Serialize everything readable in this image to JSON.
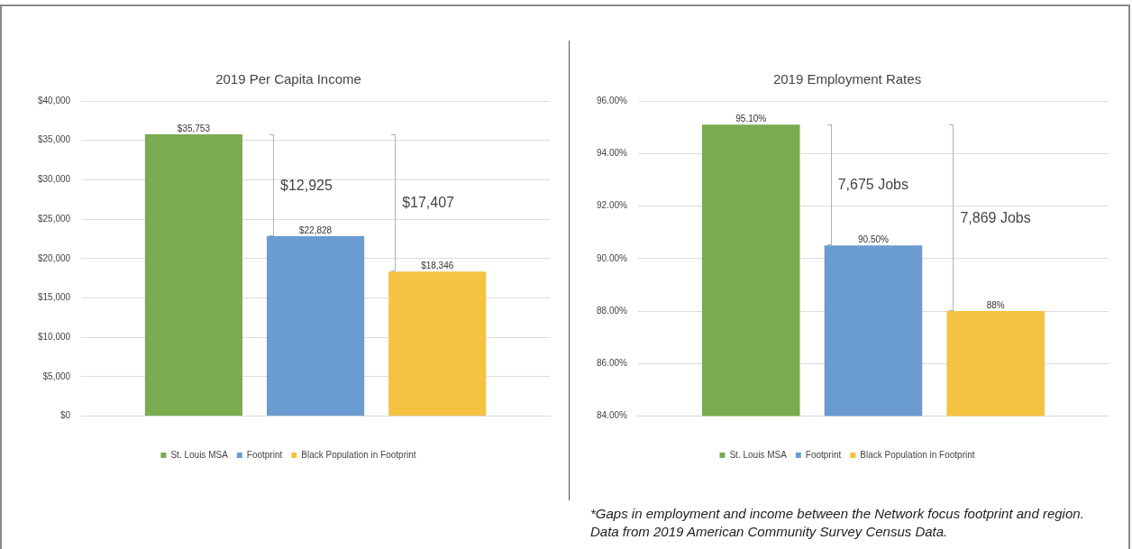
{
  "chart_data": [
    {
      "type": "bar",
      "title": "2019 Per Capita Income",
      "categories": [
        null
      ],
      "series": [
        {
          "name": "St. Louis MSA",
          "color": "#7aab4f",
          "values": [
            35753
          ],
          "value_labels": [
            "$35,753"
          ]
        },
        {
          "name": "Footprint",
          "color": "#6a9bd1",
          "values": [
            22828
          ],
          "value_labels": [
            "$22,828"
          ]
        },
        {
          "name": "Black Population in Footprint",
          "color": "#f5c242",
          "values": [
            18346
          ],
          "value_labels": [
            "$18,346"
          ]
        }
      ],
      "ylim": [
        0,
        40000
      ],
      "yticks": [
        {
          "value": 0,
          "label": "$0"
        },
        {
          "value": 5000,
          "label": "$5,000"
        },
        {
          "value": 10000,
          "label": "$10,000"
        },
        {
          "value": 15000,
          "label": "$15,000"
        },
        {
          "value": 20000,
          "label": "$20,000"
        },
        {
          "value": 25000,
          "label": "$25,000"
        },
        {
          "value": 30000,
          "label": "$30,000"
        },
        {
          "value": 35000,
          "label": "$35,000"
        },
        {
          "value": 40000,
          "label": "$40,000"
        }
      ],
      "grid": "y",
      "legend": "bottom",
      "annotations": [
        "$12,925",
        "$17,407"
      ]
    },
    {
      "type": "bar",
      "title": "2019 Employment Rates",
      "categories": [
        null
      ],
      "series": [
        {
          "name": "St. Louis MSA",
          "color": "#7aab4f",
          "values": [
            95.1
          ],
          "value_labels": [
            "95.10%"
          ]
        },
        {
          "name": "Footprint",
          "color": "#6a9bd1",
          "values": [
            90.5
          ],
          "value_labels": [
            "90.50%"
          ]
        },
        {
          "name": "Black Population in Footprint",
          "color": "#f5c242",
          "values": [
            88
          ],
          "value_labels": [
            "88%"
          ]
        }
      ],
      "ylim": [
        84,
        96
      ],
      "yticks": [
        {
          "value": 84,
          "label": "84.00%"
        },
        {
          "value": 86,
          "label": "86.00%"
        },
        {
          "value": 88,
          "label": "88.00%"
        },
        {
          "value": 90,
          "label": "90.00%"
        },
        {
          "value": 92,
          "label": "92.00%"
        },
        {
          "value": 94,
          "label": "94.00%"
        },
        {
          "value": 96,
          "label": "96.00%"
        }
      ],
      "grid": "y",
      "legend": "bottom",
      "annotations": [
        "7,675 Jobs",
        "7,869 Jobs",
        "*Gaps in employment and income between the Network focus footprint and region. Data from 2019 American Community Survey Census Data."
      ]
    }
  ]
}
